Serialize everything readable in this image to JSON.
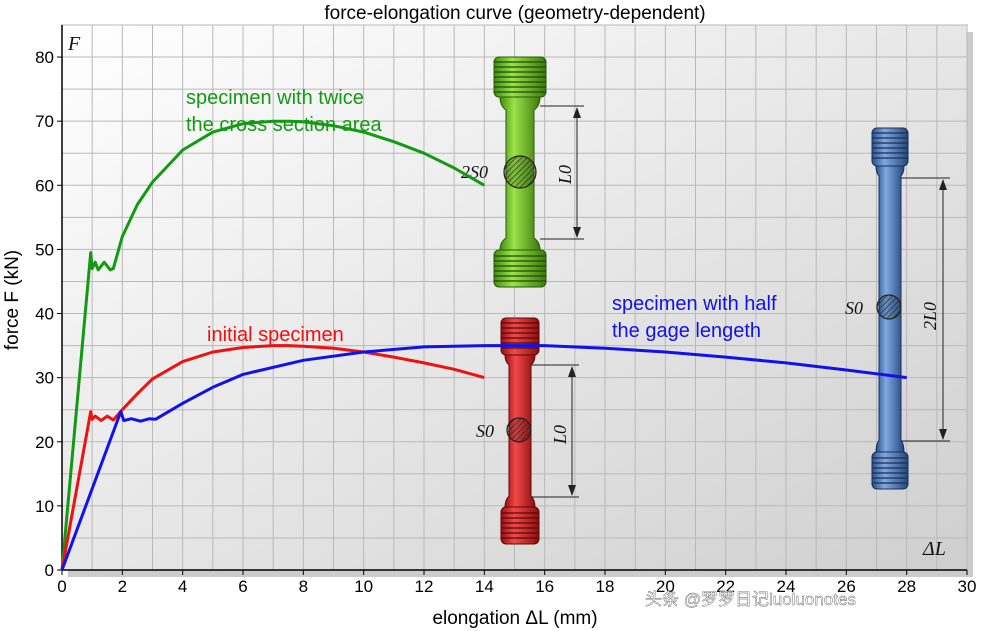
{
  "chart_data": {
    "type": "line",
    "title": "force-elongation curve (geometry-dependent)",
    "xlabel": "elongation ΔL (mm)",
    "ylabel": "force F (kN)",
    "xlim": [
      0,
      30
    ],
    "ylim": [
      0,
      85
    ],
    "x_ticks": [
      "0",
      "2",
      "4",
      "6",
      "8",
      "10",
      "12",
      "14",
      "16",
      "18",
      "20",
      "22",
      "24",
      "26",
      "28",
      "30"
    ],
    "y_ticks": [
      "0",
      "10",
      "20",
      "30",
      "40",
      "50",
      "60",
      "70",
      "80"
    ],
    "grid": true,
    "corner_labels": {
      "y_axis": "F",
      "x_axis": "ΔL"
    },
    "series": [
      {
        "name": "specimen with twice\nthe cross section area",
        "color": "#129a12",
        "x": [
          0,
          0.95,
          1.0,
          1.1,
          1.2,
          1.4,
          1.6,
          1.7,
          2,
          2.5,
          3,
          4,
          5,
          6,
          7,
          7.5,
          8,
          9,
          10,
          11,
          12,
          13,
          14
        ],
        "y": [
          0,
          49.5,
          47,
          48,
          46.8,
          48,
          46.8,
          47,
          52,
          57,
          60.5,
          65.5,
          68.3,
          69.6,
          70,
          70,
          69.9,
          69.3,
          68.3,
          66.8,
          65,
          62.7,
          60
        ]
      },
      {
        "name": "initial specimen",
        "color": "#ee1111",
        "x": [
          0,
          0.95,
          1.0,
          1.1,
          1.3,
          1.5,
          1.7,
          2,
          2.5,
          3,
          4,
          5,
          6,
          7,
          7.5,
          8,
          9,
          10,
          11,
          12,
          13,
          14
        ],
        "y": [
          0,
          24.7,
          23.5,
          24,
          23.3,
          24,
          23.4,
          25,
          27.5,
          29.8,
          32.5,
          34,
          34.7,
          35,
          35,
          34.9,
          34.6,
          34,
          33.2,
          32.3,
          31.3,
          30
        ]
      },
      {
        "name": "specimen with half\nthe gage lengeth",
        "color": "#1111ee",
        "x": [
          0,
          1.95,
          2.05,
          2.3,
          2.6,
          2.9,
          3.1,
          4,
          5,
          6,
          8,
          10,
          12,
          14,
          15,
          16,
          18,
          20,
          22,
          24,
          26,
          28
        ],
        "y": [
          0,
          24.7,
          23.3,
          23.6,
          23.2,
          23.6,
          23.5,
          26,
          28.5,
          30.5,
          32.7,
          34,
          34.8,
          35,
          35,
          35,
          34.6,
          34,
          33.2,
          32.3,
          31.2,
          30
        ]
      }
    ]
  },
  "specimens": {
    "green": {
      "area_label": "2S0",
      "length_label": "L0",
      "color": "#66c020"
    },
    "red": {
      "area_label": "S0",
      "length_label": "L0",
      "color": "#dd2222"
    },
    "blue": {
      "area_label": "S0",
      "length_label": "2L0",
      "color": "#4a7fc8"
    }
  },
  "watermark": "头条 @罗罗日记luoluonotes"
}
